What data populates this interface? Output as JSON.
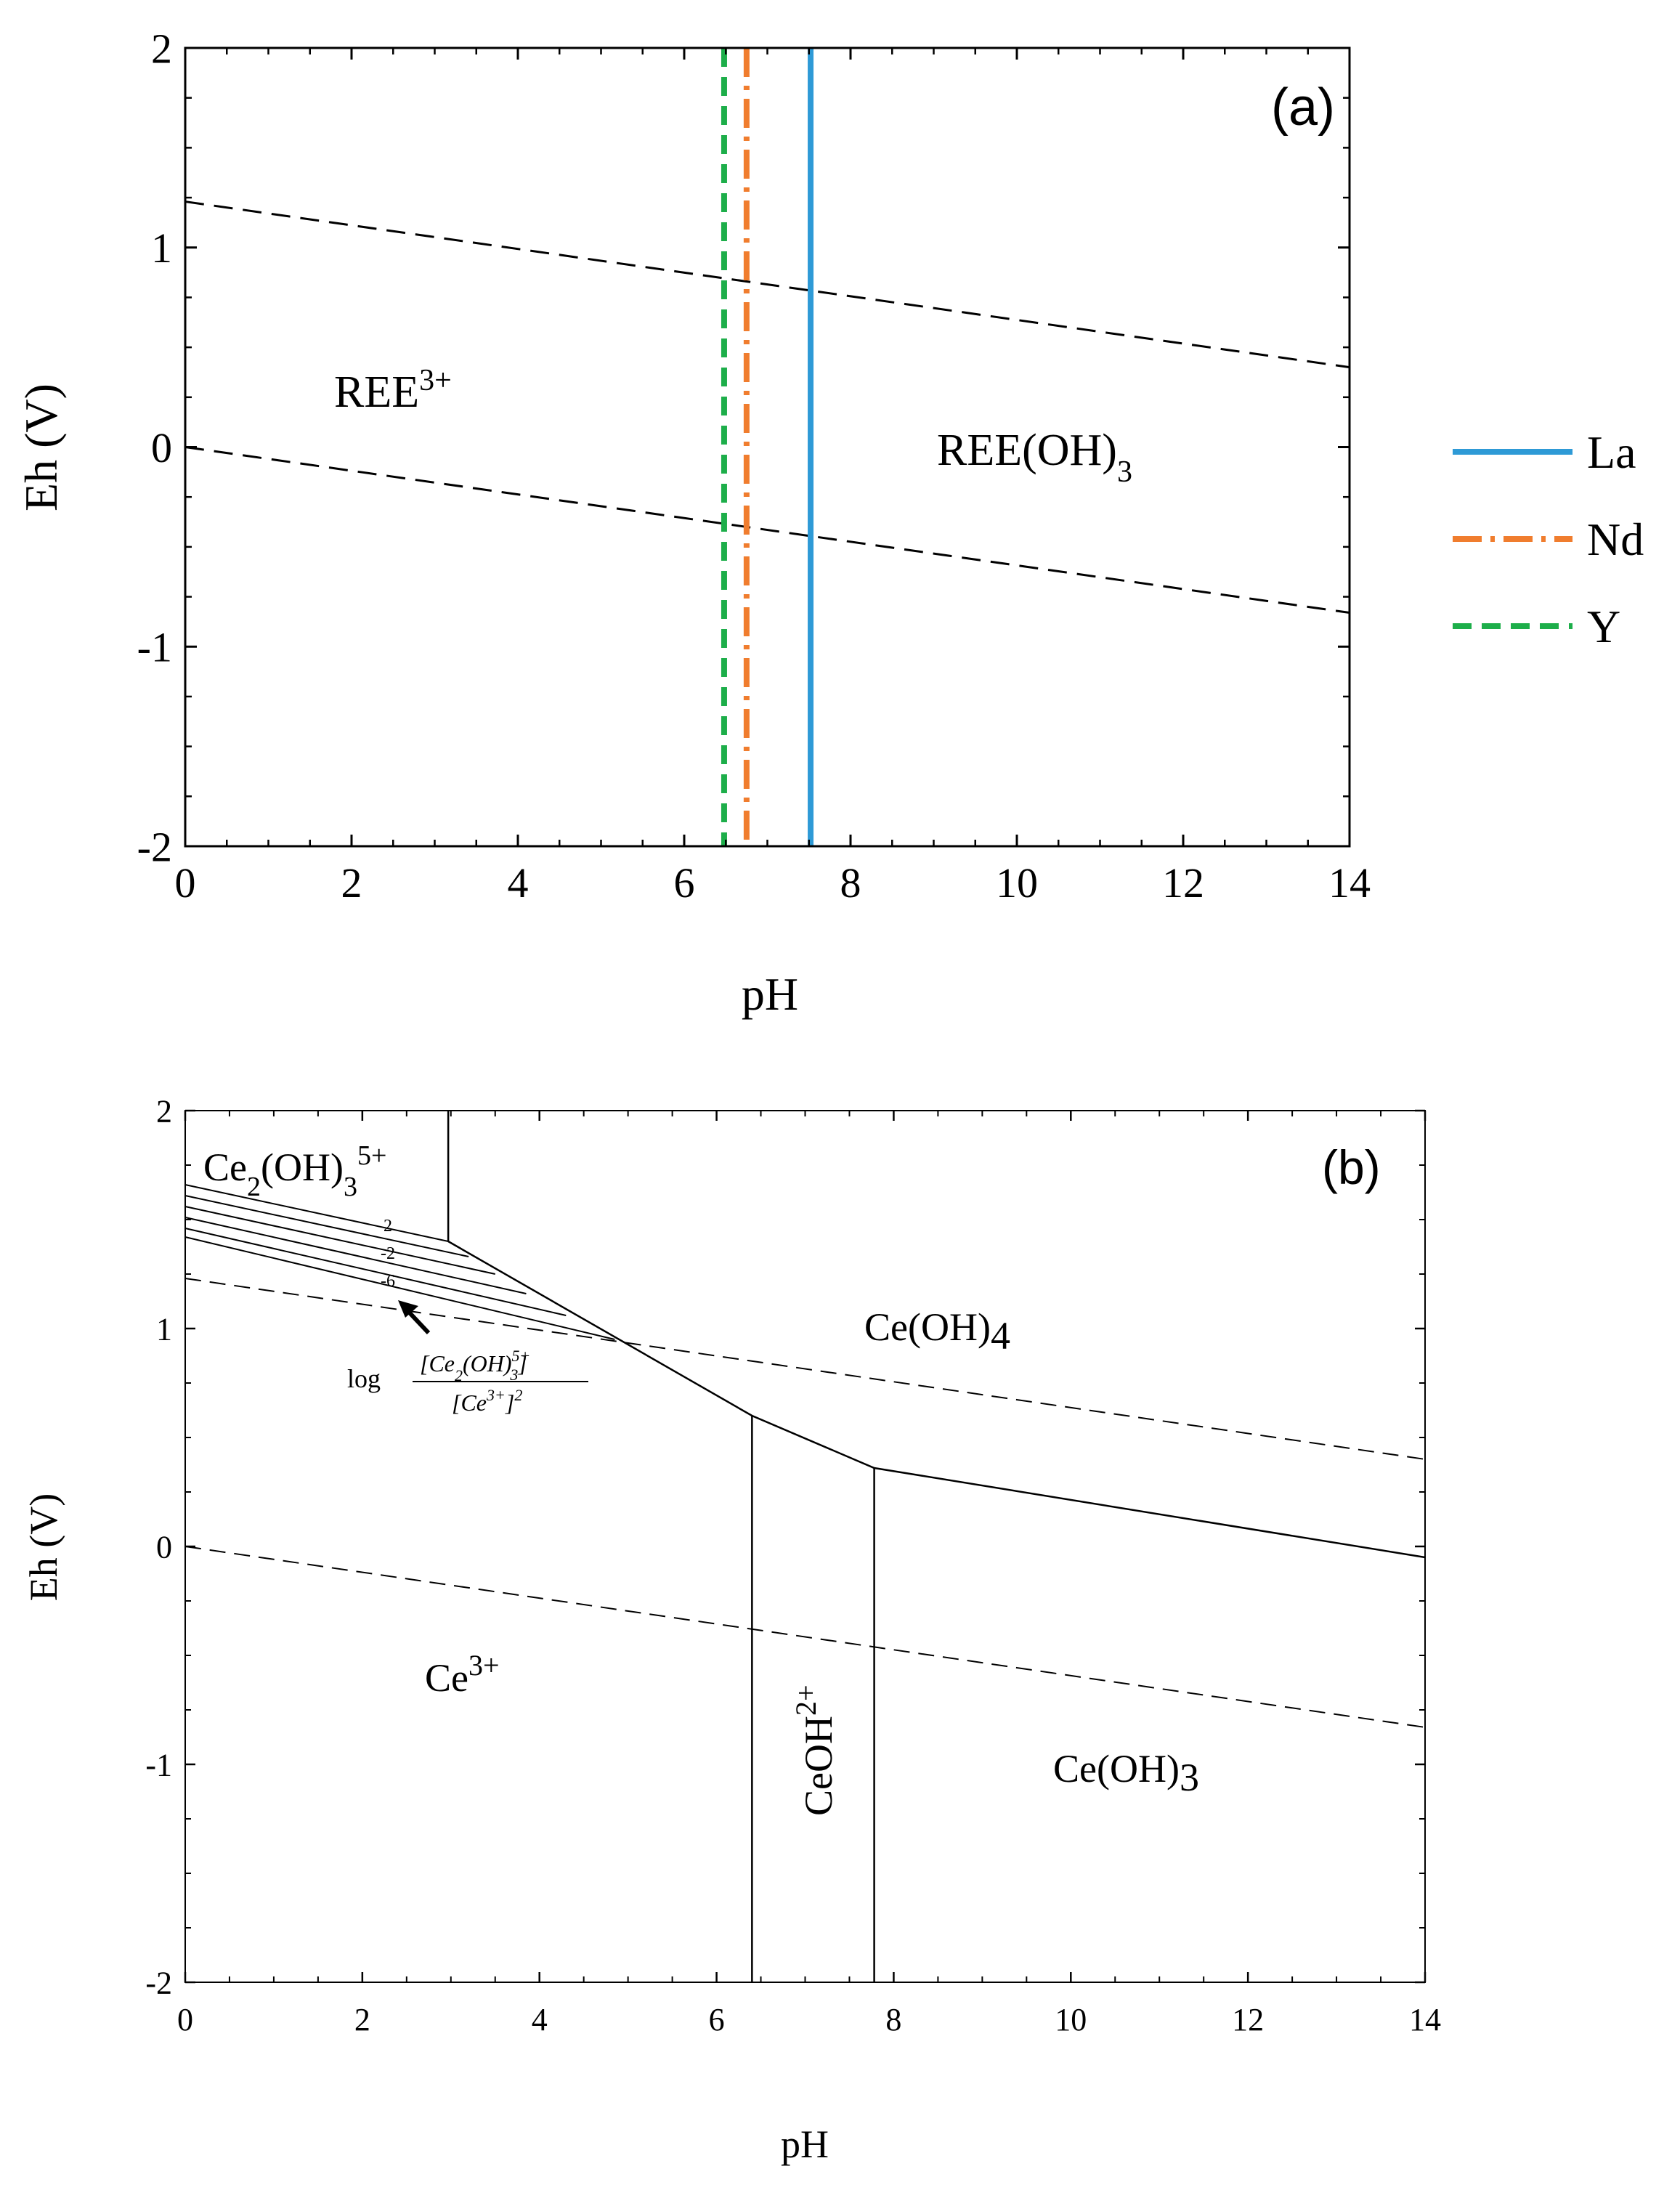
{
  "chart_data": [
    {
      "type": "line",
      "panel_label": "(a)",
      "xlabel": "pH",
      "ylabel": "Eh (V)",
      "xlim": [
        0,
        14
      ],
      "ylim": [
        -2,
        2
      ],
      "x_ticks": [
        "0",
        "2",
        "4",
        "6",
        "8",
        "10",
        "12",
        "14"
      ],
      "y_ticks": [
        "2",
        "1",
        "0",
        "-1",
        "-2"
      ],
      "series": [
        {
          "name": "La",
          "style": "solid",
          "color": "#2E9AD6",
          "ph": 7.52
        },
        {
          "name": "Nd",
          "style": "dashdot",
          "color": "#F07D2E",
          "ph": 6.75
        },
        {
          "name": "Y",
          "style": "dashed",
          "color": "#1DAE4A",
          "ph": 6.48
        }
      ],
      "water_lines": [
        {
          "name": "upper",
          "x": [
            0,
            14
          ],
          "y": [
            1.23,
            0.4
          ]
        },
        {
          "name": "lower",
          "x": [
            0,
            14
          ],
          "y": [
            0.0,
            -0.83
          ]
        }
      ],
      "regions": [
        {
          "label": "REE",
          "sup": "3+",
          "x": 2.5,
          "y": 0.27
        },
        {
          "label": "REE(OH)",
          "sub": "3",
          "x": 10.2,
          "y": -0.02
        }
      ]
    },
    {
      "type": "line",
      "panel_label": "(b)",
      "xlabel": "pH",
      "ylabel": "Eh (V)",
      "xlim": [
        0,
        14
      ],
      "ylim": [
        -2,
        2
      ],
      "x_ticks": [
        "0",
        "2",
        "4",
        "6",
        "8",
        "10",
        "12",
        "14"
      ],
      "y_ticks": [
        "2",
        "1",
        "0",
        "-1",
        "-2"
      ],
      "boundaries": [
        {
          "name": "Ce2(OH)3 vertical",
          "x": [
            2.97,
            2.97
          ],
          "y": [
            2.0,
            1.4
          ]
        },
        {
          "name": "Ce(OH)4 oxidation",
          "x": [
            2.97,
            6.4,
            7.78,
            14
          ],
          "y": [
            1.4,
            0.6,
            0.36,
            -0.05
          ]
        },
        {
          "name": "CeOH2+ left",
          "x": [
            6.4,
            6.4
          ],
          "y": [
            0.6,
            -2.0
          ]
        },
        {
          "name": "CeOH2+ right",
          "x": [
            7.78,
            7.78
          ],
          "y": [
            0.36,
            -2.0
          ]
        }
      ],
      "contours": [
        {
          "x": [
            0,
            2.97
          ],
          "y": [
            1.66,
            1.4
          ]
        },
        {
          "x": [
            0,
            3.2
          ],
          "y": [
            1.61,
            1.33
          ]
        },
        {
          "x": [
            0,
            3.5
          ],
          "y": [
            1.56,
            1.25
          ]
        },
        {
          "x": [
            0,
            3.85
          ],
          "y": [
            1.51,
            1.16
          ]
        },
        {
          "x": [
            0,
            4.3
          ],
          "y": [
            1.46,
            1.06
          ]
        },
        {
          "x": [
            0,
            4.85
          ],
          "y": [
            1.42,
            0.95
          ]
        }
      ],
      "contour_labels": [
        "2",
        "-2",
        "-6"
      ],
      "water_lines": [
        {
          "name": "upper",
          "x": [
            0,
            14
          ],
          "y": [
            1.23,
            0.4
          ]
        },
        {
          "name": "lower",
          "x": [
            0,
            14
          ],
          "y": [
            0.0,
            -0.83
          ]
        }
      ],
      "regions": {
        "ce2oh3": {
          "main": "Ce",
          "s1": "2",
          "mid": "(OH)",
          "s2": "3",
          "sup": "5+",
          "x": 0.1,
          "y": 1.8
        },
        "ceoh4": {
          "main": "Ce(OH)",
          "sub": "4",
          "x": 9.0,
          "y": 1.06
        },
        "ce3": {
          "main": "Ce",
          "sup": "3+",
          "x": 3.0,
          "y": -0.55
        },
        "ceoh2": {
          "main": "CeOH",
          "sup": "2+",
          "x": 7.1,
          "y": -0.75
        },
        "ceoh3": {
          "main": "Ce(OH)",
          "sub": "3",
          "x": 11.0,
          "y": -1.0
        }
      },
      "annotation": {
        "log": "log",
        "num_main": "[Ce",
        "num_sub1": "2",
        "num_mid": "(OH)",
        "num_sup": "5+",
        "num_sub2": "3",
        "num_end": "]",
        "den_main": "[Ce",
        "den_sup": "3+",
        "den_end": "]",
        "den_sq": "2"
      }
    }
  ]
}
